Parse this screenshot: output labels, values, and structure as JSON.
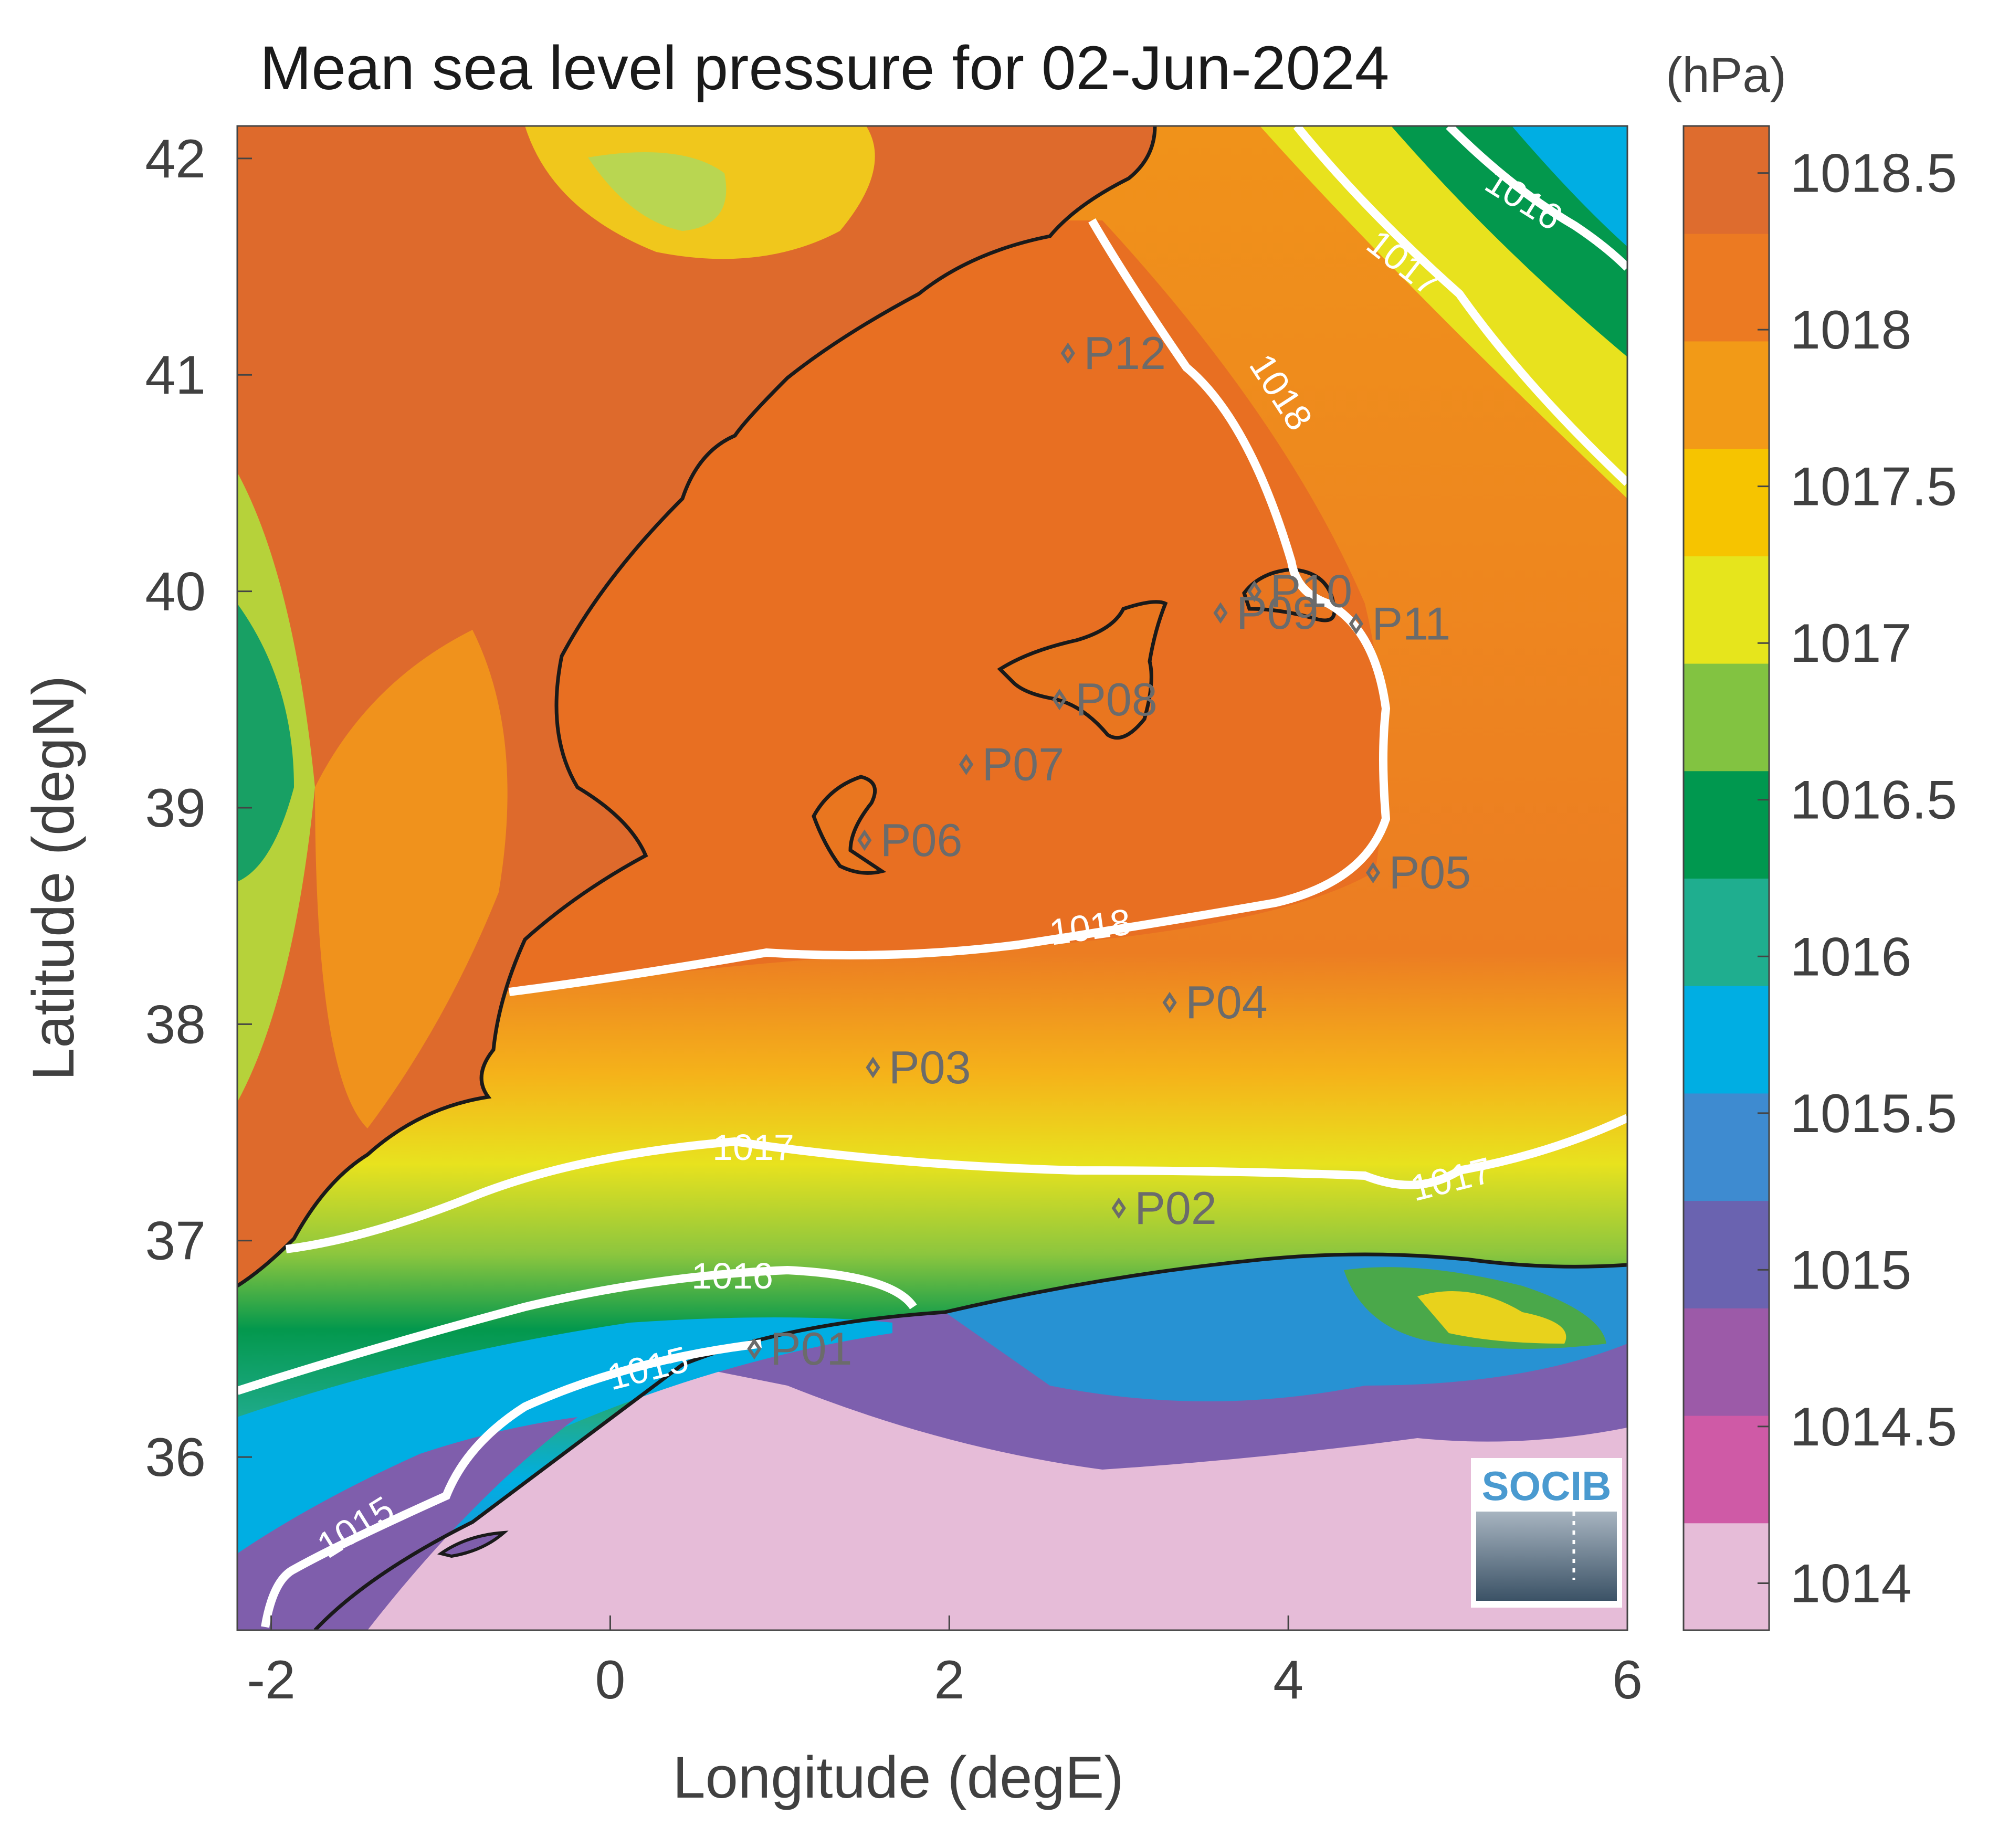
{
  "title": "Mean sea level pressure for 02-Jun-2024",
  "colorbar": {
    "unit": "(hPa)",
    "ticks": [
      1014,
      1014.5,
      1015,
      1015.5,
      1016,
      1016.5,
      1017,
      1017.5,
      1018,
      1018.5
    ],
    "range": [
      1013.85,
      1018.65
    ],
    "colors": [
      "#e6bcd8",
      "#cf5aa6",
      "#9c5aa8",
      "#6a63b0",
      "#3e8bd0",
      "#00aee3",
      "#1fae8f",
      "#00984f",
      "#82c341",
      "#e6e51c",
      "#f6c400",
      "#f29a17",
      "#ec7a22",
      "#de6c2e"
    ]
  },
  "axes": {
    "xlabel": "Longitude (degE)",
    "ylabel": "Latitude (degN)",
    "xlim": [
      -2.2,
      6
    ],
    "ylim": [
      35.2,
      42.15
    ],
    "xticks": [
      -2,
      0,
      2,
      4,
      6
    ],
    "yticks": [
      36,
      37,
      38,
      39,
      40,
      41,
      42
    ]
  },
  "contour_labels": [
    "1018",
    "1018",
    "1017",
    "1017",
    "1017",
    "1016",
    "1016",
    "1015",
    "1015"
  ],
  "stations": [
    {
      "name": "P01",
      "lon": 0.85,
      "lat": 36.5
    },
    {
      "name": "P02",
      "lon": 3.0,
      "lat": 37.15
    },
    {
      "name": "P03",
      "lon": 1.55,
      "lat": 37.8
    },
    {
      "name": "P04",
      "lon": 3.3,
      "lat": 38.1
    },
    {
      "name": "P05",
      "lon": 4.5,
      "lat": 38.7
    },
    {
      "name": "P06",
      "lon": 1.5,
      "lat": 38.85
    },
    {
      "name": "P07",
      "lon": 2.1,
      "lat": 39.2
    },
    {
      "name": "P08",
      "lon": 2.65,
      "lat": 39.5
    },
    {
      "name": "P09",
      "lon": 3.6,
      "lat": 39.9
    },
    {
      "name": "P10",
      "lon": 3.8,
      "lat": 40.0
    },
    {
      "name": "P11",
      "lon": 4.4,
      "lat": 39.85
    },
    {
      "name": "P12",
      "lon": 2.7,
      "lat": 41.1
    }
  ],
  "logo": {
    "text": "SOCIB"
  }
}
